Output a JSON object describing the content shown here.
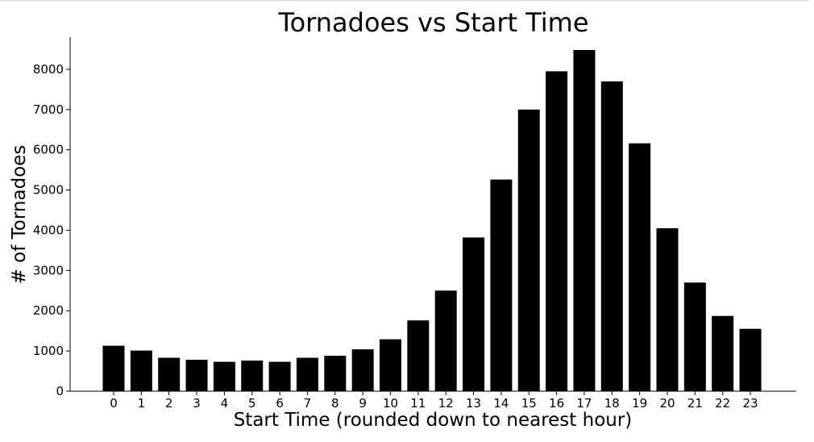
{
  "chart_data": {
    "type": "bar",
    "title": "Tornadoes vs Start Time",
    "xlabel": "Start Time (rounded down to nearest hour)",
    "ylabel": "# of Tornadoes",
    "categories": [
      "0",
      "1",
      "2",
      "3",
      "4",
      "5",
      "6",
      "7",
      "8",
      "9",
      "10",
      "11",
      "12",
      "13",
      "14",
      "15",
      "16",
      "17",
      "18",
      "19",
      "20",
      "21",
      "22",
      "23"
    ],
    "values": [
      1130,
      1010,
      830,
      780,
      730,
      760,
      730,
      830,
      880,
      1040,
      1290,
      1760,
      2500,
      3820,
      5260,
      7000,
      7950,
      8480,
      7700,
      6160,
      4050,
      2700,
      1870,
      1550
    ],
    "ylim": [
      0,
      8800
    ],
    "yticks": [
      "0",
      "1000",
      "2000",
      "3000",
      "4000",
      "5000",
      "6000",
      "7000",
      "8000"
    ],
    "bar_color": "#000000",
    "grid": false,
    "legend": false
  }
}
